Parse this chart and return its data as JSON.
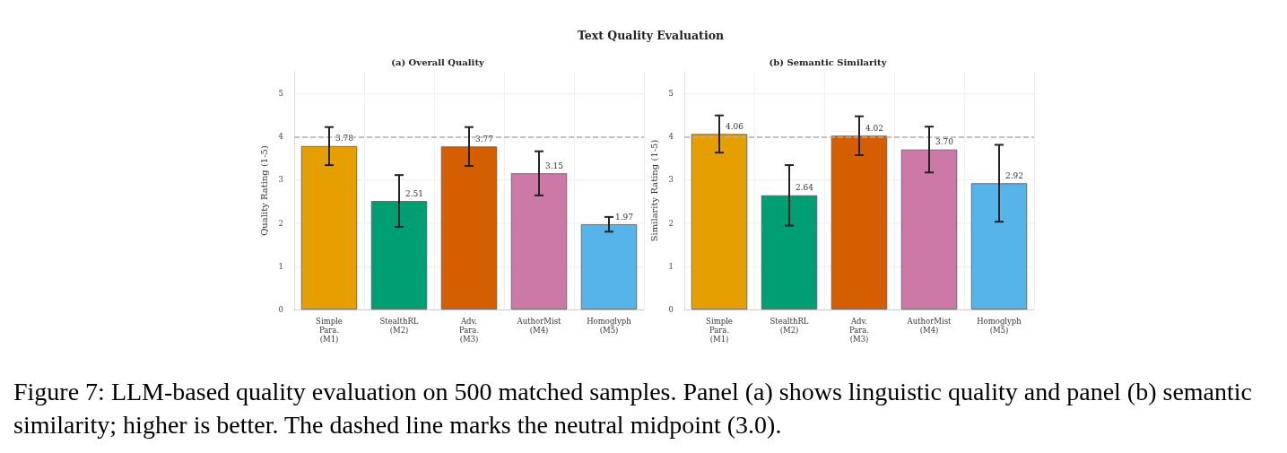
{
  "chart_data": [
    {
      "type": "bar",
      "title": "(a) Overall Quality",
      "ylabel": "Quality Rating (1-5)",
      "categories": [
        "Simple\nPara.\n(M1)",
        "StealthRL\n(M2)",
        "Adv.\nPara.\n(M3)",
        "AuthorMist\n(M4)",
        "Homoglyph\n(M5)"
      ],
      "values": [
        3.78,
        2.51,
        3.77,
        3.15,
        1.97
      ],
      "colors": [
        "#e69f00",
        "#009e73",
        "#d55e00",
        "#cc79a7",
        "#56b4e9"
      ],
      "errors": [
        0.44,
        0.6,
        0.45,
        0.51,
        0.17
      ],
      "value_labels": [
        "3.78",
        "2.51",
        "3.77",
        "3.15",
        "1.97"
      ],
      "ylim": [
        0,
        5.5
      ],
      "yticks": [
        0,
        1,
        2,
        3,
        4,
        5
      ],
      "grid": true,
      "ref_lines": [
        {
          "axis": "y",
          "value": 4,
          "color": "#b0b0b0",
          "line_style": "dashed"
        }
      ],
      "annotations": [
        "Text Quality Evaluation",
        "Figure 7: LLM-based quality evaluation on 500 matched samples. Panel (a) shows linguistic quality and panel (b) semantic similarity; higher is better. The dashed line marks the neutral midpoint (3.0)."
      ]
    },
    {
      "type": "bar",
      "title": "(b) Semantic Similarity",
      "ylabel": "Similarity Rating (1-5)",
      "categories": [
        "Simple\nPara.\n(M1)",
        "StealthRL\n(M2)",
        "Adv.\nPara.\n(M3)",
        "AuthorMist\n(M4)",
        "Homoglyph\n(M5)"
      ],
      "values": [
        4.06,
        2.64,
        4.02,
        3.7,
        2.92
      ],
      "colors": [
        "#e69f00",
        "#009e73",
        "#d55e00",
        "#cc79a7",
        "#56b4e9"
      ],
      "errors": [
        0.43,
        0.7,
        0.45,
        0.53,
        0.89
      ],
      "value_labels": [
        "4.06",
        "2.64",
        "4.02",
        "3.70",
        "2.92"
      ],
      "ylim": [
        0,
        5.5
      ],
      "yticks": [
        0,
        1,
        2,
        3,
        4,
        5
      ],
      "grid": true,
      "ref_lines": [
        {
          "axis": "y",
          "value": 4,
          "color": "#b0b0b0",
          "line_style": "dashed"
        }
      ]
    }
  ]
}
